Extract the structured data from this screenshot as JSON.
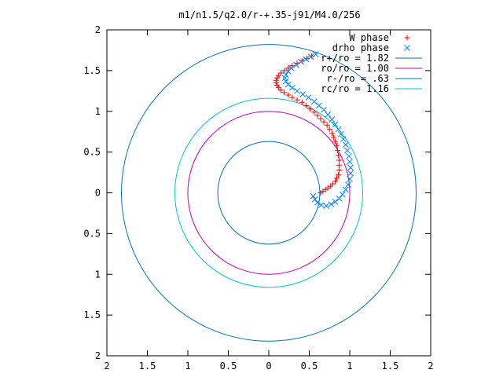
{
  "chart_data": {
    "type": "scatter",
    "title": "m1/n1.5/q2.0/r-+.35-j91/M4.0/256",
    "xlabel": "",
    "ylabel": "",
    "xlim": [
      -2,
      2
    ],
    "ylim": [
      -2,
      2
    ],
    "x_ticks": [
      -2,
      -1.5,
      -1,
      -0.5,
      0,
      0.5,
      1,
      1.5,
      2
    ],
    "y_ticks": [
      -2,
      -1.5,
      -1,
      -0.5,
      0,
      0.5,
      1,
      1.5,
      2
    ],
    "x_tick_labels": [
      "2",
      "1.5",
      "1",
      "0.5",
      "0",
      "0.5",
      "1",
      "1.5",
      "2"
    ],
    "y_tick_labels": [
      "2",
      "1.5",
      "1",
      "0.5",
      "0",
      "0.5",
      "1",
      "1.5",
      "2"
    ],
    "grid": false,
    "legend_position": "top-right",
    "series": [
      {
        "name": "W phase",
        "kind": "points",
        "marker": "plus",
        "color": "#ff0000",
        "x": [
          0.53,
          0.47,
          0.41,
          0.35,
          0.29,
          0.24,
          0.19,
          0.15,
          0.12,
          0.1,
          0.09,
          0.09,
          0.1,
          0.12,
          0.15,
          0.19,
          0.24,
          0.29,
          0.35,
          0.41,
          0.46,
          0.51,
          0.56,
          0.6,
          0.64,
          0.68,
          0.72,
          0.75,
          0.78,
          0.8,
          0.82,
          0.84,
          0.85,
          0.86,
          0.87,
          0.87,
          0.87,
          0.86,
          0.84,
          0.82,
          0.79,
          0.76,
          0.73,
          0.7,
          0.67,
          0.64
        ],
        "y": [
          1.68,
          1.65,
          1.62,
          1.59,
          1.56,
          1.53,
          1.5,
          1.47,
          1.44,
          1.41,
          1.38,
          1.35,
          1.32,
          1.29,
          1.26,
          1.23,
          1.2,
          1.17,
          1.14,
          1.11,
          1.07,
          1.03,
          0.99,
          0.95,
          0.91,
          0.87,
          0.83,
          0.78,
          0.73,
          0.68,
          0.63,
          0.58,
          0.52,
          0.46,
          0.4,
          0.34,
          0.28,
          0.22,
          0.18,
          0.14,
          0.11,
          0.08,
          0.06,
          0.04,
          0.02,
          0.0
        ]
      },
      {
        "name": "drho phase",
        "kind": "points",
        "marker": "cross",
        "color": "#0080ff",
        "x": [
          0.58,
          0.52,
          0.46,
          0.4,
          0.34,
          0.28,
          0.24,
          0.21,
          0.2,
          0.21,
          0.24,
          0.29,
          0.35,
          0.42,
          0.49,
          0.56,
          0.62,
          0.68,
          0.73,
          0.78,
          0.82,
          0.86,
          0.89,
          0.92,
          0.95,
          0.97,
          0.99,
          1.0,
          1.01,
          1.01,
          1.0,
          0.98,
          0.95,
          0.91,
          0.87,
          0.82,
          0.77,
          0.71,
          0.65,
          0.6,
          0.57,
          0.55
        ],
        "y": [
          1.7,
          1.67,
          1.64,
          1.61,
          1.57,
          1.53,
          1.49,
          1.45,
          1.41,
          1.37,
          1.33,
          1.29,
          1.25,
          1.21,
          1.17,
          1.12,
          1.07,
          1.02,
          0.96,
          0.9,
          0.84,
          0.78,
          0.72,
          0.66,
          0.59,
          0.52,
          0.45,
          0.38,
          0.31,
          0.24,
          0.17,
          0.1,
          0.04,
          -0.02,
          -0.07,
          -0.11,
          -0.14,
          -0.16,
          -0.15,
          -0.12,
          -0.08,
          -0.04
        ]
      },
      {
        "name": "r+/ro = 1.82",
        "kind": "circle",
        "radius": 1.82,
        "color": "#0072bd"
      },
      {
        "name": "ro/ro = 1.00",
        "kind": "circle",
        "radius": 1.0,
        "color": "#c000c0"
      },
      {
        "name": "r-/ro = .63",
        "kind": "circle",
        "radius": 0.63,
        "color": "#0072bd"
      },
      {
        "name": "rc/ro = 1.16",
        "kind": "circle",
        "radius": 1.16,
        "color": "#00c8c8"
      }
    ]
  }
}
